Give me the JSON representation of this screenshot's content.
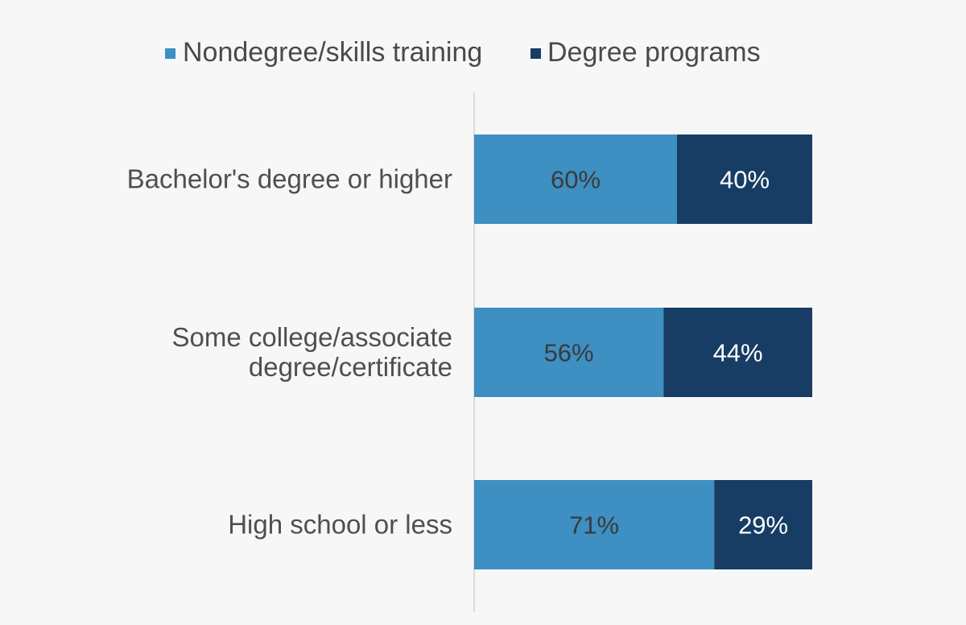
{
  "chart_data": {
    "type": "bar",
    "orientation": "horizontal",
    "stacked": true,
    "title": "",
    "xlabel": "",
    "ylabel": "",
    "xlim": [
      0,
      100
    ],
    "grid": false,
    "legend_position": "top-center",
    "categories": [
      [
        "Bachelor's degree or higher"
      ],
      [
        "Some college/associate",
        "degree/certificate"
      ],
      [
        "High school or less"
      ]
    ],
    "series": [
      {
        "name": "Nondegree/skills training",
        "color": "#3e8fc2",
        "label_color": "#3a3a3a",
        "values": [
          60,
          56,
          71
        ],
        "labels": [
          "60%",
          "56%",
          "71%"
        ]
      },
      {
        "name": "Degree programs",
        "color": "#173d64",
        "label_color": "#ffffff",
        "values": [
          40,
          44,
          29
        ],
        "labels": [
          "40%",
          "44%",
          "29%"
        ]
      }
    ]
  }
}
